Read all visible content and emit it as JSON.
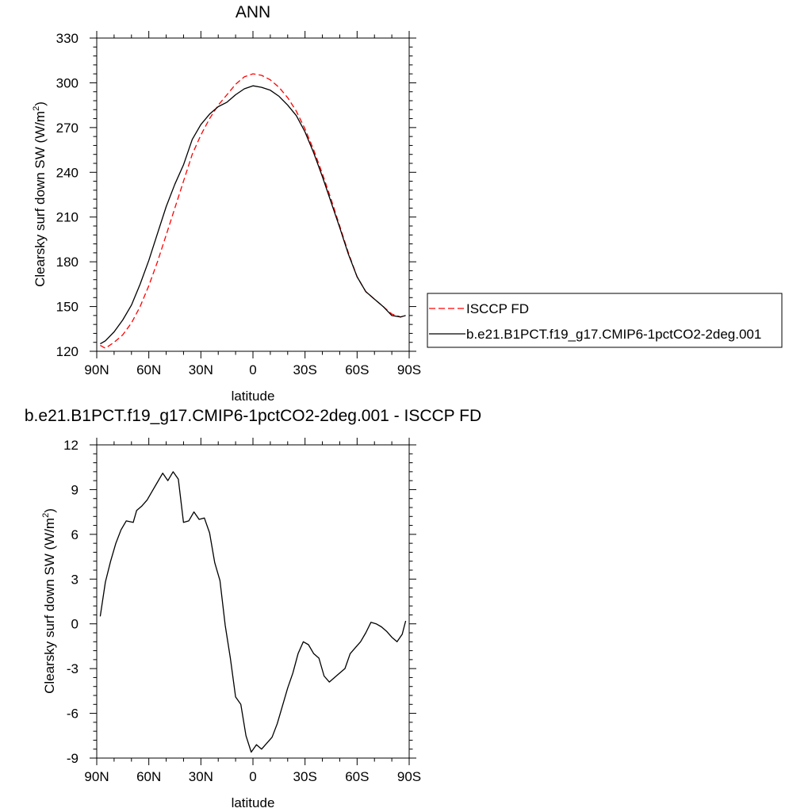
{
  "chart_data": [
    {
      "type": "line",
      "title": "ANN",
      "xlabel": "latitude",
      "ylabel_main": "Clearsky surf down SW (W/m",
      "ylabel_sup": "2",
      "ylabel_close": ")",
      "xlim": [
        90,
        -90
      ],
      "ylim": [
        120,
        330
      ],
      "xticks": [
        90,
        60,
        30,
        0,
        -30,
        -60,
        -90
      ],
      "xtick_labels": [
        "90N",
        "60N",
        "30N",
        "0",
        "30S",
        "60S",
        "90S"
      ],
      "yticks": [
        120,
        150,
        180,
        210,
        240,
        270,
        300,
        330
      ],
      "ytick_labels": [
        "120",
        "150",
        "180",
        "210",
        "240",
        "270",
        "300",
        "330"
      ],
      "legend_position": "right",
      "series": [
        {
          "name": "ISCCP FD",
          "color": "#ff0000",
          "dash": "dashed",
          "x": [
            88,
            85,
            80,
            75,
            70,
            65,
            60,
            55,
            50,
            45,
            40,
            35,
            30,
            25,
            20,
            15,
            10,
            5,
            0,
            -5,
            -10,
            -15,
            -20,
            -25,
            -30,
            -35,
            -40,
            -45,
            -50,
            -55,
            -60,
            -65,
            -70,
            -75,
            -80,
            -85,
            -88
          ],
          "y": [
            124,
            122,
            126,
            131,
            139,
            150,
            164,
            180,
            198,
            216,
            234,
            252,
            265,
            276,
            285,
            292,
            299,
            304,
            306,
            305,
            302,
            297,
            290,
            281,
            269,
            255,
            239,
            222,
            204,
            186,
            170,
            160,
            155,
            150,
            145,
            143,
            144
          ]
        },
        {
          "name": "b.e21.B1PCT.f19_g17.CMIP6-1pctCO2-2deg.001",
          "color": "#000000",
          "dash": "solid",
          "x": [
            88,
            85,
            80,
            75,
            70,
            65,
            60,
            55,
            50,
            45,
            40,
            35,
            30,
            25,
            20,
            15,
            10,
            5,
            0,
            -5,
            -10,
            -15,
            -20,
            -25,
            -30,
            -35,
            -40,
            -45,
            -50,
            -55,
            -60,
            -65,
            -70,
            -75,
            -80,
            -85,
            -88
          ],
          "y": [
            125,
            127,
            133,
            141,
            151,
            165,
            181,
            199,
            217,
            232,
            245,
            262,
            272,
            279,
            284,
            287,
            292,
            296,
            298,
            297,
            295,
            291,
            285,
            278,
            267,
            253,
            237,
            220,
            203,
            185,
            170,
            160,
            155,
            150,
            144,
            143,
            144
          ]
        }
      ]
    },
    {
      "type": "line",
      "title": "b.e21.B1PCT.f19_g17.CMIP6-1pctCO2-2deg.001 - ISCCP FD",
      "xlabel": "latitude",
      "ylabel_main": "Clearsky surf down SW (W/m",
      "ylabel_sup": "2",
      "ylabel_close": ")",
      "xlim": [
        90,
        -90
      ],
      "ylim": [
        -9,
        12
      ],
      "xticks": [
        90,
        60,
        30,
        0,
        -30,
        -60,
        -90
      ],
      "xtick_labels": [
        "90N",
        "60N",
        "30N",
        "0",
        "30S",
        "60S",
        "90S"
      ],
      "yticks": [
        -9,
        -6,
        -3,
        0,
        3,
        6,
        9,
        12
      ],
      "ytick_labels": [
        "-9",
        "-6",
        "-3",
        "0",
        "3",
        "6",
        "9",
        "12"
      ],
      "series": [
        {
          "color": "#000000",
          "dash": "solid",
          "x": [
            88,
            85,
            82,
            79,
            76,
            73,
            69,
            67,
            64,
            61,
            58,
            55,
            52,
            49,
            46,
            43,
            40,
            37,
            34,
            31,
            28,
            25,
            22,
            19,
            16,
            13,
            10,
            7,
            4,
            1,
            -2,
            -5,
            -8,
            -11,
            -14,
            -17,
            -20,
            -23,
            -26,
            -29,
            -32,
            -35,
            -38,
            -41,
            -44,
            -47,
            -50,
            -53,
            -56,
            -59,
            -62,
            -65,
            -68,
            -71,
            -74,
            -77,
            -80,
            -83,
            -86,
            -88
          ],
          "y": [
            0.5,
            2.8,
            4.2,
            5.4,
            6.3,
            6.9,
            6.8,
            7.6,
            7.9,
            8.3,
            8.9,
            9.5,
            10.1,
            9.6,
            10.2,
            9.7,
            6.8,
            6.9,
            7.5,
            7.0,
            7.1,
            6.1,
            4.1,
            2.9,
            -0.1,
            -2.3,
            -4.9,
            -5.4,
            -7.5,
            -8.6,
            -8.1,
            -8.4,
            -8.0,
            -7.6,
            -6.7,
            -5.5,
            -4.3,
            -3.3,
            -2.0,
            -1.2,
            -1.4,
            -2.0,
            -2.3,
            -3.5,
            -3.9,
            -3.6,
            -3.3,
            -3.0,
            -2.0,
            -1.6,
            -1.2,
            -0.6,
            0.1,
            0.0,
            -0.2,
            -0.5,
            -0.9,
            -1.2,
            -0.7,
            0.2
          ]
        }
      ]
    }
  ]
}
